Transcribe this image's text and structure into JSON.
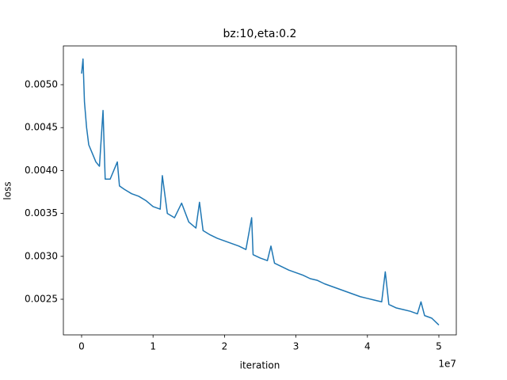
{
  "chart_data": {
    "type": "line",
    "title": "bz:10,eta:0.2",
    "x_label": "iteration",
    "y_label": "loss",
    "x_offset_label": "1e7",
    "x": [
      0,
      200000,
      400000,
      700000,
      1000000,
      1500000,
      2000000,
      2500000,
      3000000,
      3300000,
      4000000,
      5000000,
      5300000,
      6000000,
      7000000,
      8000000,
      9000000,
      10000000,
      11000000,
      11300000,
      12000000,
      13000000,
      14000000,
      15000000,
      16000000,
      16500000,
      17000000,
      18000000,
      19000000,
      20000000,
      21000000,
      22000000,
      23000000,
      23800000,
      24000000,
      25000000,
      26000000,
      26500000,
      27000000,
      28000000,
      29000000,
      30000000,
      31000000,
      32000000,
      33000000,
      34000000,
      35000000,
      36000000,
      37000000,
      38000000,
      39000000,
      40000000,
      41000000,
      42000000,
      42500000,
      43000000,
      44000000,
      45000000,
      46000000,
      47000000,
      47500000,
      48000000,
      49000000,
      50000000
    ],
    "series": [
      {
        "color": "#1f77b4",
        "values": [
          0.00513,
          0.0053,
          0.0048,
          0.0045,
          0.0043,
          0.0042,
          0.0041,
          0.00405,
          0.0047,
          0.0039,
          0.0039,
          0.0041,
          0.00382,
          0.00378,
          0.00373,
          0.0037,
          0.00365,
          0.00358,
          0.00355,
          0.00394,
          0.0035,
          0.00345,
          0.00362,
          0.0034,
          0.00333,
          0.00363,
          0.0033,
          0.00325,
          0.00321,
          0.00318,
          0.00315,
          0.00312,
          0.00308,
          0.00345,
          0.00302,
          0.00298,
          0.00295,
          0.00312,
          0.00292,
          0.00288,
          0.00284,
          0.00281,
          0.00278,
          0.00274,
          0.00272,
          0.00268,
          0.00265,
          0.00262,
          0.00259,
          0.00256,
          0.00253,
          0.00251,
          0.00249,
          0.00247,
          0.00282,
          0.00244,
          0.0024,
          0.00238,
          0.00236,
          0.00233,
          0.00247,
          0.00231,
          0.00228,
          0.0022
        ]
      }
    ],
    "xlim": [
      -2550000,
      52440000
    ],
    "xticks": [
      {
        "value": 0,
        "label": "0"
      },
      {
        "value": 10000000,
        "label": "1"
      },
      {
        "value": 20000000,
        "label": "2"
      },
      {
        "value": 30000000,
        "label": "3"
      },
      {
        "value": 40000000,
        "label": "4"
      },
      {
        "value": 50000000,
        "label": "5"
      }
    ],
    "ylim": [
      0.002085,
      0.005452
    ],
    "yticks": [
      0.0025,
      {
        "value": 0.003,
        "label": "0.0030"
      },
      0.0035,
      {
        "value": 0.004,
        "label": "0.0040"
      },
      0.0045,
      {
        "value": 0.005,
        "label": "0.0050"
      }
    ]
  }
}
